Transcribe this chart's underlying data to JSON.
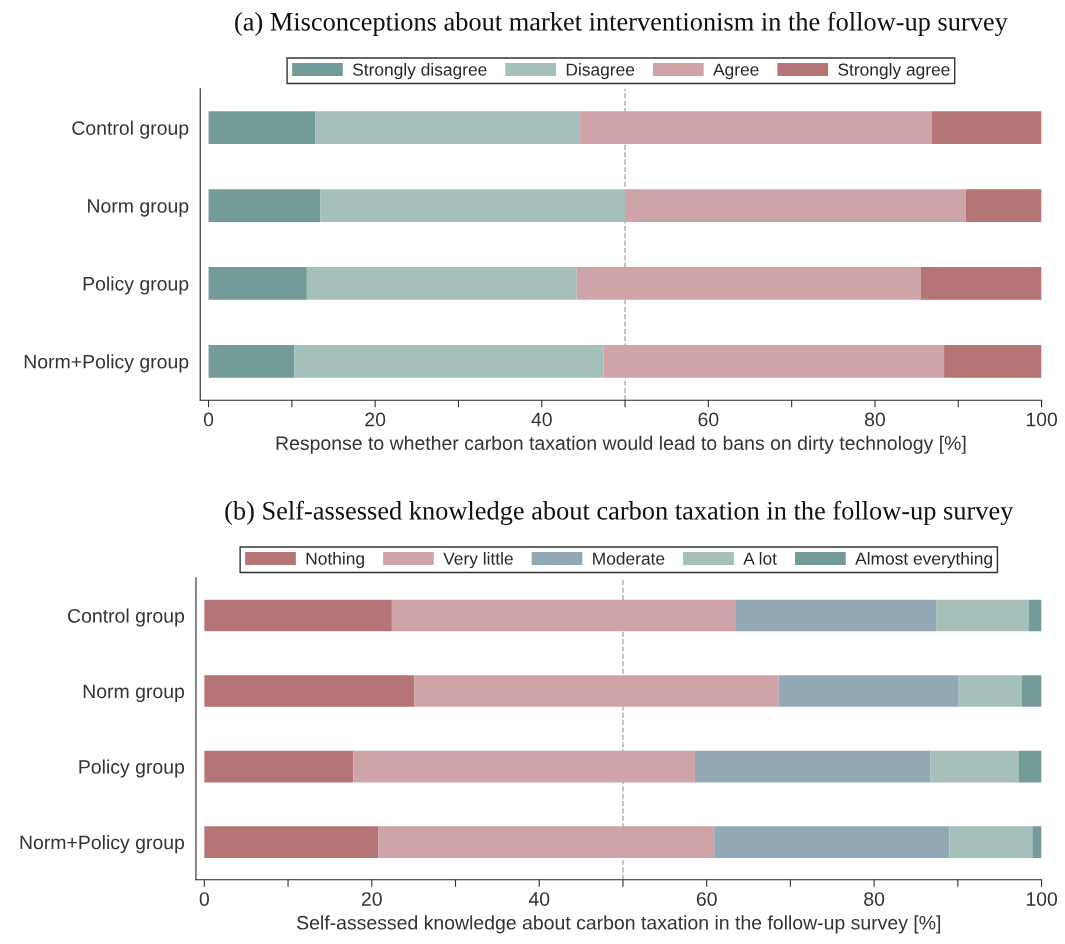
{
  "chart_data": [
    {
      "type": "bar",
      "orientation": "horizontal",
      "stacked": true,
      "title": "(a) Misconceptions about market interventionism in the follow-up survey",
      "xlabel": "Response to whether carbon taxation would lead to bans on dirty technology [%]",
      "categories": [
        "Control group",
        "Norm group",
        "Policy group",
        "Norm+Policy group"
      ],
      "series": [
        {
          "name": "Strongly disagree",
          "color": "#739c98",
          "values": [
            12.8,
            13.4,
            11.8,
            10.3
          ]
        },
        {
          "name": "Disagree",
          "color": "#a5bfbb",
          "values": [
            31.8,
            36.6,
            32.4,
            37.1
          ]
        },
        {
          "name": "Agree",
          "color": "#cfa4a8",
          "values": [
            42.2,
            40.9,
            41.3,
            40.9
          ]
        },
        {
          "name": "Strongly agree",
          "color": "#b57576",
          "values": [
            13.2,
            9.1,
            14.5,
            11.7
          ]
        }
      ],
      "xlim": [
        -1,
        100
      ],
      "xticks": [
        0,
        {
          "value": 10,
          "label": null
        },
        20,
        {
          "value": 30,
          "label": null
        },
        40,
        {
          "value": 50,
          "label": null
        },
        60,
        {
          "value": 70,
          "label": null
        },
        80,
        {
          "value": 90,
          "label": null
        },
        100
      ],
      "ref_lines": [
        {
          "axis": "x",
          "value": 50,
          "color": "#aaaaaa",
          "line_style": "dashed"
        }
      ],
      "legend": "top",
      "grid": false
    },
    {
      "type": "bar",
      "orientation": "horizontal",
      "stacked": true,
      "title": "(b) Self-assessed knowledge about carbon taxation in the follow-up survey",
      "xlabel": "Self-assessed knowledge about carbon taxation in the follow-up survey [%]",
      "categories": [
        "Control group",
        "Norm group",
        "Policy group",
        "Norm+Policy group"
      ],
      "series": [
        {
          "name": "Nothing",
          "color": "#b57576",
          "values": [
            22.4,
            25.1,
            17.8,
            20.8
          ]
        },
        {
          "name": "Very little",
          "color": "#cfa4a8",
          "values": [
            41.0,
            43.5,
            40.8,
            40.1
          ]
        },
        {
          "name": "Moderate",
          "color": "#93a8b5",
          "values": [
            24.0,
            21.5,
            28.1,
            28.1
          ]
        },
        {
          "name": "A lot",
          "color": "#a5bfbb",
          "values": [
            11.1,
            7.5,
            10.6,
            9.9
          ]
        },
        {
          "name": "Almost everything",
          "color": "#739c98",
          "values": [
            1.5,
            2.4,
            2.7,
            1.1
          ]
        }
      ],
      "xlim": [
        -1,
        100
      ],
      "xticks": [
        0,
        {
          "value": 10,
          "label": null
        },
        20,
        {
          "value": 30,
          "label": null
        },
        40,
        {
          "value": 50,
          "label": null
        },
        60,
        {
          "value": 70,
          "label": null
        },
        80,
        {
          "value": 90,
          "label": null
        },
        100
      ],
      "ref_lines": [
        {
          "axis": "x",
          "value": 50,
          "color": "#aaaaaa",
          "line_style": "dashed"
        }
      ],
      "legend": "top",
      "grid": false
    }
  ]
}
